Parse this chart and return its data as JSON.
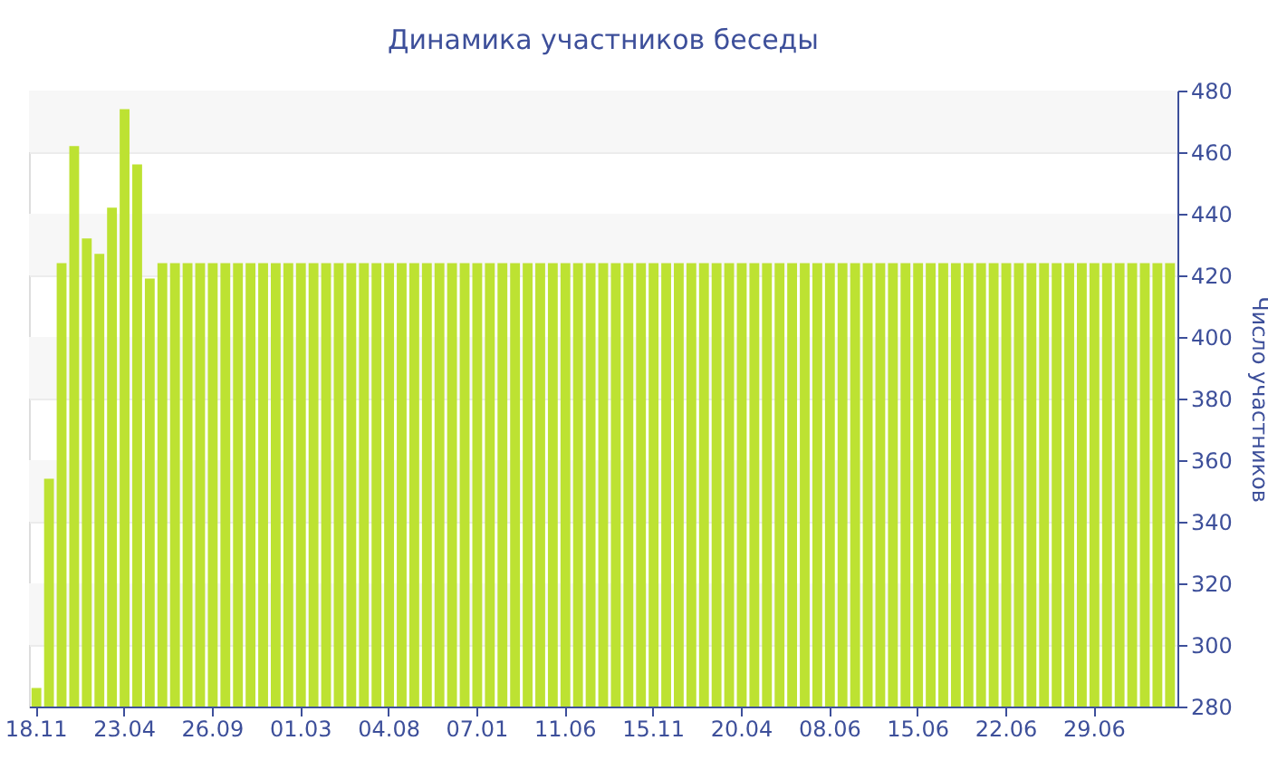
{
  "chart_data": {
    "type": "bar",
    "title": "Динамика участников беседы",
    "ylabel": "Число участников",
    "categories": [
      "18.11",
      null,
      null,
      null,
      null,
      null,
      null,
      "23.04",
      null,
      null,
      null,
      null,
      null,
      null,
      "26.09",
      null,
      null,
      null,
      null,
      null,
      null,
      "01.03",
      null,
      null,
      null,
      null,
      null,
      null,
      "04.08",
      null,
      null,
      null,
      null,
      null,
      null,
      "07.01",
      null,
      null,
      null,
      null,
      null,
      null,
      "11.06",
      null,
      null,
      null,
      null,
      null,
      null,
      "15.11",
      null,
      null,
      null,
      null,
      null,
      null,
      "20.04",
      null,
      null,
      null,
      null,
      null,
      null,
      "08.06",
      null,
      null,
      null,
      null,
      null,
      null,
      "15.06",
      null,
      null,
      null,
      null,
      null,
      null,
      "22.06",
      null,
      null,
      null,
      null,
      null,
      null,
      "29.06",
      null,
      null,
      null,
      null,
      null,
      null
    ],
    "values": [
      286,
      354,
      424,
      462,
      432,
      427,
      442,
      474,
      456,
      419,
      424,
      424,
      424,
      424,
      424,
      424,
      424,
      424,
      424,
      424,
      424,
      424,
      424,
      424,
      424,
      424,
      424,
      424,
      424,
      424,
      424,
      424,
      424,
      424,
      424,
      424,
      424,
      424,
      424,
      424,
      424,
      424,
      424,
      424,
      424,
      424,
      424,
      424,
      424,
      424,
      424,
      424,
      424,
      424,
      424,
      424,
      424,
      424,
      424,
      424,
      424,
      424,
      424,
      424,
      424,
      424,
      424,
      424,
      424,
      424,
      424,
      424,
      424,
      424,
      424,
      424,
      424,
      424,
      424,
      424,
      424,
      424,
      424,
      424,
      424,
      424,
      424,
      424,
      424,
      424,
      424
    ],
    "color": "#bde232",
    "ylim": [
      280,
      480
    ],
    "yticks": [
      280,
      300,
      320,
      340,
      360,
      380,
      400,
      420,
      440,
      460,
      480
    ],
    "grid": "y"
  }
}
